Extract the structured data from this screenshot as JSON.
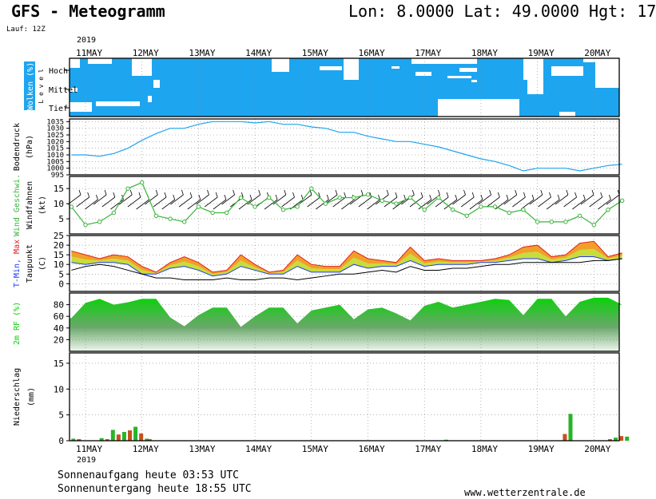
{
  "header": {
    "title": "GFS - Meteogramm",
    "location": "Lon: 8.0000 Lat: 49.0000 Hgt: 17",
    "run": "Lauf: 12Z",
    "year": "2019"
  },
  "footer": {
    "sunrise": "Sonnenaufgang heute 03:53 UTC",
    "sunset": "Sonnenuntergang heute 18:55 UTC",
    "source": "www.wetterzentrale.de"
  },
  "colors": {
    "cloud_blue": "#1ea5f0",
    "pressure_line": "#1ea5f0",
    "wind_green": "#3cb43c",
    "tmin_blue": "#1e3cf0",
    "tmax_red": "#e61e1e",
    "rh_green": "#0ad20a",
    "precip_green": "#28b428",
    "precip_orange": "#c8501e"
  },
  "chart_data": [
    {
      "type": "heatmap",
      "panel": "clouds",
      "ylabel": "Wolken (%)",
      "ylabel2": "L e v e l",
      "levels": [
        "Hoch",
        "Mittel",
        "Tief"
      ],
      "x_categories": [
        "11MAY",
        "12MAY",
        "13MAY",
        "14MAY",
        "15MAY",
        "16MAY",
        "17MAY",
        "18MAY",
        "19MAY",
        "20MAY"
      ]
    },
    {
      "type": "line",
      "panel": "pressure",
      "ylabel": "Bodendruck",
      "ylabel2": "(hPa)",
      "y_ticks": [
        995,
        1000,
        1005,
        1010,
        1015,
        1020,
        1025,
        1030,
        1035
      ],
      "ylim": [
        995,
        1037
      ],
      "x": [
        0,
        0.25,
        0.5,
        0.75,
        1,
        1.25,
        1.5,
        1.75,
        2,
        2.25,
        2.5,
        2.75,
        3,
        3.25,
        3.5,
        3.75,
        4,
        4.25,
        4.5,
        4.75,
        5,
        5.25,
        5.5,
        5.75,
        6,
        6.25,
        6.5,
        6.75,
        7,
        7.25,
        7.5,
        7.75,
        8,
        8.25,
        8.5,
        8.75,
        9,
        9.25,
        9.5,
        9.75
      ],
      "values": [
        1010,
        1010,
        1009,
        1011,
        1015,
        1021,
        1026,
        1030,
        1030,
        1033,
        1035,
        1035,
        1035,
        1034,
        1035,
        1033,
        1033,
        1031,
        1030,
        1027,
        1027,
        1024,
        1022,
        1020,
        1020,
        1018,
        1016,
        1013,
        1010,
        1007,
        1005,
        1002,
        998,
        1000,
        1000,
        1000,
        998,
        1000,
        1002,
        1003
      ]
    },
    {
      "type": "line",
      "panel": "wind",
      "ylabel": "Wind Geschwi.",
      "ylabel2": "Windfahnen",
      "unit": "(kt)",
      "y_ticks": [
        5,
        10,
        15
      ],
      "ylim": [
        0,
        19
      ],
      "x": [
        0,
        0.25,
        0.5,
        0.75,
        1,
        1.25,
        1.5,
        1.75,
        2,
        2.25,
        2.5,
        2.75,
        3,
        3.25,
        3.5,
        3.75,
        4,
        4.25,
        4.5,
        4.75,
        5,
        5.25,
        5.5,
        5.75,
        6,
        6.25,
        6.5,
        6.75,
        7,
        7.25,
        7.5,
        7.75,
        8,
        8.25,
        8.5,
        8.75,
        9,
        9.25,
        9.5,
        9.75
      ],
      "values": [
        9,
        3,
        4,
        7,
        15,
        17,
        6,
        5,
        4,
        9,
        7,
        7,
        12,
        9,
        12,
        8,
        9,
        15,
        10,
        12,
        12,
        13,
        11,
        10,
        12,
        8,
        12,
        8,
        6,
        9,
        9,
        7,
        8,
        4,
        4,
        4,
        6,
        3,
        8,
        11
      ]
    },
    {
      "type": "area",
      "panel": "temperature",
      "ylabel": "T-Min, Max",
      "ylabel2": "Taupunkt",
      "unit": "(C)",
      "y_ticks": [
        0,
        5,
        10,
        15,
        20,
        25
      ],
      "ylim": [
        -4,
        25
      ],
      "x": [
        0,
        0.25,
        0.5,
        0.75,
        1,
        1.25,
        1.5,
        1.75,
        2,
        2.25,
        2.5,
        2.75,
        3,
        3.25,
        3.5,
        3.75,
        4,
        4.25,
        4.5,
        4.75,
        5,
        5.25,
        5.5,
        5.75,
        6,
        6.25,
        6.5,
        6.75,
        7,
        7.25,
        7.5,
        7.75,
        8,
        8.25,
        8.5,
        8.75,
        9,
        9.25,
        9.5,
        9.75
      ],
      "series": [
        {
          "name": "T-Max",
          "values": [
            17,
            15,
            13,
            15,
            14,
            9,
            6,
            11,
            14,
            11,
            6,
            7,
            15,
            10,
            6,
            7,
            15,
            10,
            9,
            9,
            17,
            13,
            12,
            11,
            19,
            12,
            13,
            12,
            12,
            12,
            13,
            15,
            19,
            20,
            14,
            15,
            21,
            22,
            14,
            16
          ]
        },
        {
          "name": "T-Min",
          "values": [
            11,
            10,
            11,
            11,
            10,
            5,
            5,
            8,
            9,
            7,
            4,
            5,
            9,
            7,
            5,
            5,
            9,
            6,
            6,
            6,
            10,
            8,
            9,
            9,
            12,
            9,
            10,
            10,
            10,
            11,
            11,
            12,
            13,
            13,
            11,
            12,
            14,
            14,
            12,
            13
          ]
        },
        {
          "name": "Taupunkt",
          "values": [
            7,
            9,
            10,
            9,
            7,
            5,
            3,
            3,
            2,
            2,
            2,
            3,
            2,
            2,
            3,
            3,
            2,
            3,
            4,
            5,
            5,
            6,
            7,
            6,
            9,
            7,
            7,
            8,
            8,
            9,
            10,
            10,
            11,
            11,
            11,
            11,
            11,
            12,
            12,
            13
          ]
        }
      ]
    },
    {
      "type": "area",
      "panel": "humidity",
      "ylabel": "2m RF (%)",
      "y_ticks": [
        20,
        40,
        60,
        80
      ],
      "ylim": [
        0,
        100
      ],
      "x": [
        0,
        0.25,
        0.5,
        0.75,
        1,
        1.25,
        1.5,
        1.75,
        2,
        2.25,
        2.5,
        2.75,
        3,
        3.25,
        3.5,
        3.75,
        4,
        4.25,
        4.5,
        4.75,
        5,
        5.25,
        5.5,
        5.75,
        6,
        6.25,
        6.5,
        6.75,
        7,
        7.25,
        7.5,
        7.75,
        8,
        8.25,
        8.5,
        8.75,
        9,
        9.25,
        9.5,
        9.75
      ],
      "values": [
        57,
        83,
        90,
        80,
        84,
        90,
        90,
        58,
        43,
        62,
        75,
        75,
        42,
        60,
        75,
        75,
        48,
        70,
        75,
        80,
        55,
        72,
        75,
        65,
        53,
        78,
        85,
        75,
        80,
        85,
        90,
        88,
        62,
        90,
        90,
        60,
        85,
        92,
        92,
        80
      ]
    },
    {
      "type": "bar",
      "panel": "precipitation",
      "ylabel": "Niederschlag",
      "unit": "(mm)",
      "y_ticks": [
        0,
        5,
        10,
        15
      ],
      "ylim": [
        0,
        17
      ],
      "x_categories": [
        "11MAY",
        "12MAY",
        "13MAY",
        "14MAY",
        "15MAY",
        "16MAY",
        "17MAY",
        "18MAY",
        "19MAY",
        "20MAY"
      ],
      "x_labels_year": "2019",
      "x": [
        0,
        0.1,
        0.5,
        0.6,
        0.7,
        0.8,
        0.9,
        1.0,
        1.1,
        1.2,
        1.3,
        1.35,
        6.6,
        8.7,
        8.8,
        9.5,
        9.6,
        9.7,
        9.8
      ],
      "values": [
        0.4,
        0.3,
        0.5,
        0.3,
        2.1,
        1.2,
        1.7,
        2.0,
        2.7,
        1.4,
        0.4,
        0.3,
        0.2,
        1.3,
        5.2,
        0.3,
        0.6,
        0.9,
        0.8
      ]
    }
  ]
}
